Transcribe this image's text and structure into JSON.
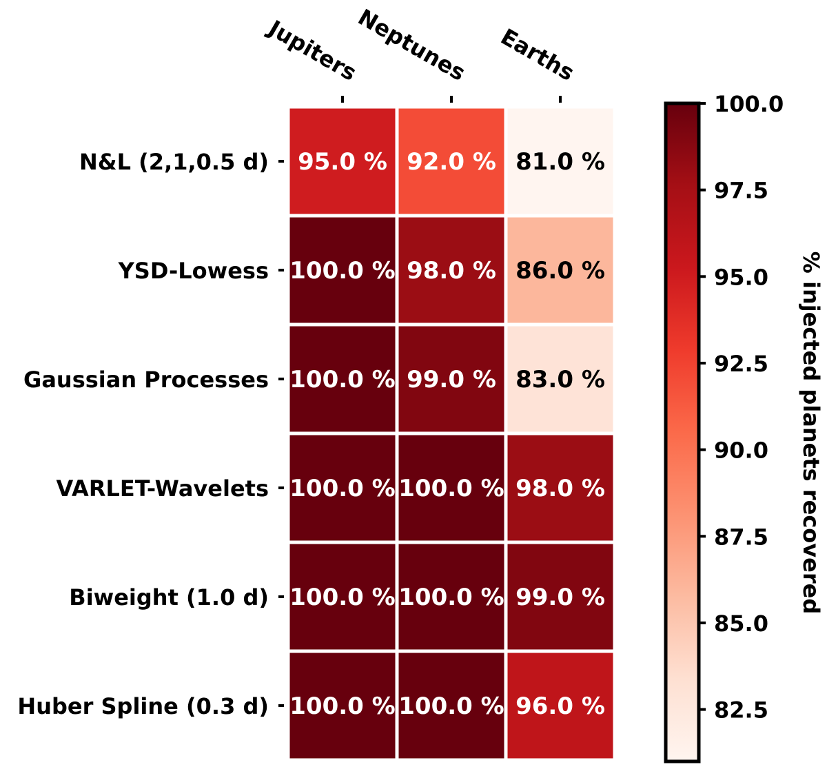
{
  "chart_data": {
    "type": "heatmap",
    "title": "",
    "columns": [
      "Jupiters",
      "Neptunes",
      "Earths"
    ],
    "rows": [
      "N&L (2,1,0.5 d)",
      "YSD-Lowess",
      "Gaussian Processes",
      "VARLET-Wavelets",
      "Biweight (1.0 d)",
      "Huber Spline (0.3 d)"
    ],
    "values": [
      [
        95.0,
        92.0,
        81.0
      ],
      [
        100.0,
        98.0,
        86.0
      ],
      [
        100.0,
        99.0,
        83.0
      ],
      [
        100.0,
        100.0,
        98.0
      ],
      [
        100.0,
        100.0,
        99.0
      ],
      [
        100.0,
        100.0,
        96.0
      ]
    ],
    "cell_labels": [
      [
        "95.0 %",
        "92.0 %",
        "81.0 %"
      ],
      [
        "100.0 %",
        "98.0 %",
        "86.0 %"
      ],
      [
        "100.0 %",
        "99.0 %",
        "83.0 %"
      ],
      [
        "100.0 %",
        "100.0 %",
        "98.0 %"
      ],
      [
        "100.0 %",
        "100.0 %",
        "99.0 %"
      ],
      [
        "100.0 %",
        "100.0 %",
        "96.0 %"
      ]
    ],
    "colormap": "Reds",
    "vmin": 81.0,
    "vmax": 100.0,
    "colorbar": {
      "label": "% injected planets recovered",
      "ticks": [
        100.0,
        97.5,
        95.0,
        92.5,
        90.0,
        87.5,
        85.0,
        82.5
      ],
      "tick_labels": [
        "100.0",
        "97.5",
        "95.0",
        "92.5",
        "90.0",
        "87.5",
        "85.0",
        "82.5"
      ]
    },
    "colormap_stops": [
      "#fff5f0",
      "#fee0d2",
      "#fcbba1",
      "#fc9272",
      "#fb6a4a",
      "#ef3b2c",
      "#cb181d",
      "#a50f15",
      "#67000d"
    ]
  }
}
